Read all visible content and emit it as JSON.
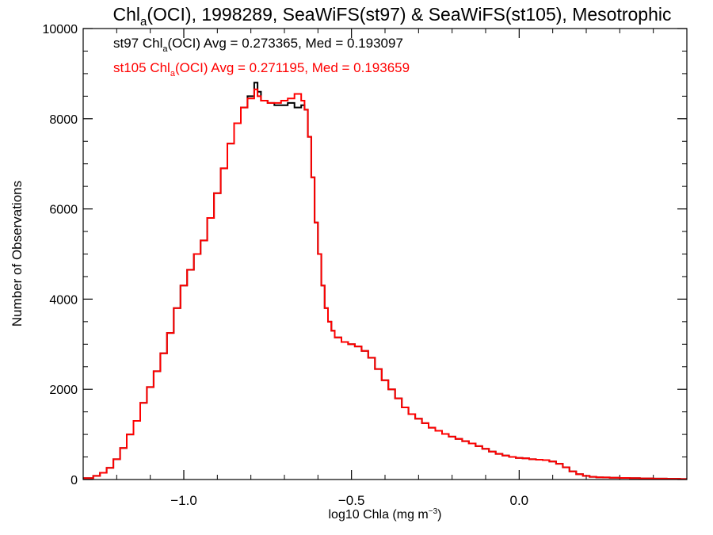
{
  "chart_data": {
    "type": "line",
    "title": {
      "pre": "Chl",
      "sub": "a",
      "post": "(OCI), 1998289, SeaWiFS(st97) & SeaWiFS(st105), Mesotrophic"
    },
    "xlabel": {
      "pre": "log10 Chla (mg m",
      "sup": "−3",
      "post": ")"
    },
    "ylabel": "Number of Observations",
    "xlim": [
      -1.3,
      0.5
    ],
    "ylim": [
      0,
      10000
    ],
    "x_ticks": [
      -1.0,
      -0.5,
      0.0
    ],
    "x_tick_labels": [
      "−1.0",
      "−0.5",
      "0.0"
    ],
    "y_ticks": [
      0,
      2000,
      4000,
      6000,
      8000,
      10000
    ],
    "y_tick_labels": [
      "0",
      "2000",
      "4000",
      "6000",
      "8000",
      "10000"
    ],
    "grid": false,
    "annotations": [
      {
        "series": 0,
        "pre": "st97 Chl",
        "sub": "a",
        "post": "(OCI) Avg = 0.273365, Med = 0.193097"
      },
      {
        "series": 1,
        "pre": "st105 Chl",
        "sub": "a",
        "post": "(OCI) Avg = 0.271195, Med = 0.193659"
      }
    ],
    "x": [
      -1.3,
      -1.27,
      -1.25,
      -1.23,
      -1.21,
      -1.19,
      -1.17,
      -1.15,
      -1.13,
      -1.11,
      -1.09,
      -1.07,
      -1.05,
      -1.03,
      -1.01,
      -0.99,
      -0.97,
      -0.95,
      -0.93,
      -0.91,
      -0.89,
      -0.87,
      -0.85,
      -0.83,
      -0.81,
      -0.79,
      -0.78,
      -0.77,
      -0.75,
      -0.73,
      -0.71,
      -0.69,
      -0.67,
      -0.65,
      -0.64,
      -0.63,
      -0.62,
      -0.61,
      -0.6,
      -0.59,
      -0.58,
      -0.57,
      -0.56,
      -0.55,
      -0.53,
      -0.51,
      -0.49,
      -0.47,
      -0.45,
      -0.43,
      -0.41,
      -0.39,
      -0.37,
      -0.35,
      -0.33,
      -0.31,
      -0.29,
      -0.27,
      -0.25,
      -0.23,
      -0.21,
      -0.19,
      -0.17,
      -0.15,
      -0.13,
      -0.11,
      -0.09,
      -0.07,
      -0.05,
      -0.03,
      -0.01,
      0.01,
      0.03,
      0.05,
      0.07,
      0.09,
      0.11,
      0.13,
      0.15,
      0.17,
      0.19,
      0.21,
      0.23,
      0.25,
      0.27,
      0.3,
      0.33,
      0.36,
      0.4,
      0.44,
      0.48,
      0.5
    ],
    "series": [
      {
        "name": "st97",
        "color": "#000000",
        "values": [
          30,
          80,
          150,
          260,
          450,
          700,
          1000,
          1300,
          1700,
          2050,
          2400,
          2800,
          3250,
          3800,
          4300,
          4650,
          5000,
          5300,
          5800,
          6350,
          6900,
          7450,
          7900,
          8250,
          8500,
          8800,
          8600,
          8400,
          8350,
          8300,
          8300,
          8350,
          8250,
          8300,
          8200,
          7600,
          6700,
          5700,
          5000,
          4300,
          3800,
          3500,
          3300,
          3150,
          3050,
          3000,
          2950,
          2850,
          2700,
          2450,
          2200,
          2000,
          1800,
          1600,
          1450,
          1350,
          1250,
          1150,
          1080,
          1010,
          950,
          900,
          850,
          800,
          740,
          680,
          620,
          570,
          530,
          500,
          480,
          470,
          450,
          440,
          430,
          400,
          350,
          270,
          180,
          120,
          80,
          60,
          50,
          45,
          40,
          35,
          30,
          25,
          20,
          15,
          10,
          10
        ]
      },
      {
        "name": "st105",
        "color": "#ff0000",
        "values": [
          30,
          80,
          150,
          260,
          450,
          700,
          1000,
          1300,
          1700,
          2050,
          2400,
          2800,
          3250,
          3800,
          4300,
          4650,
          5000,
          5300,
          5800,
          6350,
          6900,
          7450,
          7900,
          8250,
          8450,
          8650,
          8500,
          8400,
          8350,
          8350,
          8400,
          8450,
          8550,
          8400,
          8200,
          7600,
          6700,
          5700,
          5000,
          4300,
          3800,
          3500,
          3300,
          3150,
          3050,
          3000,
          2950,
          2850,
          2700,
          2450,
          2200,
          2000,
          1800,
          1600,
          1450,
          1350,
          1250,
          1150,
          1080,
          1010,
          950,
          900,
          850,
          800,
          740,
          680,
          620,
          570,
          530,
          500,
          480,
          470,
          450,
          440,
          430,
          400,
          350,
          270,
          180,
          120,
          80,
          60,
          50,
          45,
          40,
          35,
          30,
          25,
          20,
          15,
          10,
          10
        ]
      }
    ]
  }
}
